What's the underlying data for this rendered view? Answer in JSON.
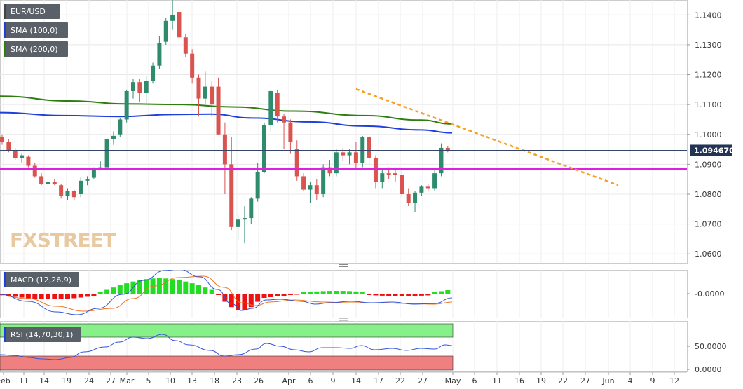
{
  "instrument": "EUR/USD",
  "legends": {
    "main": [
      "EUR/USD",
      "SMA (100,0)",
      "SMA (200,0)"
    ],
    "macd": "MACD (12,26,9)",
    "rsi": "RSI (14,70,30,1)"
  },
  "watermark": "FXSTREET",
  "colors": {
    "bull": "#2e8b6e",
    "bear": "#d9534f",
    "sma100": "#1f3fdc",
    "sma200": "#2e7d10",
    "support": "#e020e0",
    "trend": "#f5a020",
    "macd_line": "#3355dd",
    "signal_line": "#ee7722",
    "hist_pos": "#22dd22",
    "hist_neg": "#ee1111",
    "rsi_line": "#3355dd",
    "rsi_ob": "#88f088",
    "rsi_os": "#f08080"
  },
  "chart_data": {
    "type": "candlestick",
    "price_axis": {
      "min": 1.057,
      "max": 1.145,
      "ticks": [
        "1.1400",
        "1.1300",
        "1.1200",
        "1.1100",
        "1.1000",
        "1.0900",
        "1.0800",
        "1.0700",
        "1.0600"
      ]
    },
    "last_price": "1.094670",
    "support_level": 1.0885,
    "trendline": {
      "from": {
        "bar": 54,
        "value": 1.1152
      },
      "to": {
        "bar": 94,
        "value": 1.083
      }
    },
    "x_ticks": [
      "Feb",
      "11",
      "14",
      "19",
      "24",
      "27",
      "Mar",
      "5",
      "10",
      "13",
      "18",
      "23",
      "26",
      "Apr",
      "6",
      "9",
      "14",
      "17",
      "22",
      "27",
      "May",
      "6",
      "11",
      "16",
      "19",
      "22",
      "27",
      "Jun",
      "4",
      "9",
      "12"
    ],
    "macd_axis_label": "-0.0000",
    "rsi_axis_labels": [
      "50.0000",
      "0.0000"
    ],
    "rsi_overbought": 70,
    "rsi_oversold": 30,
    "candles": [
      [
        1.099,
        1.1,
        1.0965,
        1.0975
      ],
      [
        1.0975,
        1.0985,
        1.094,
        1.0945
      ],
      [
        1.0945,
        1.0955,
        1.0915,
        1.092
      ],
      [
        1.092,
        1.0935,
        1.0905,
        1.093
      ],
      [
        1.0925,
        1.093,
        1.089,
        1.0895
      ],
      [
        1.0895,
        1.0905,
        1.0855,
        1.086
      ],
      [
        1.086,
        1.087,
        1.083,
        1.0835
      ],
      [
        1.0835,
        1.085,
        1.0825,
        1.084
      ],
      [
        1.084,
        1.085,
        1.083,
        1.0835
      ],
      [
        1.083,
        1.0835,
        1.0785,
        1.0795
      ],
      [
        1.0795,
        1.082,
        1.078,
        1.081
      ],
      [
        1.081,
        1.0815,
        1.078,
        1.079
      ],
      [
        1.08,
        1.0855,
        1.079,
        1.0845
      ],
      [
        1.0845,
        1.086,
        1.083,
        1.085
      ],
      [
        1.0855,
        1.089,
        1.085,
        1.0885
      ],
      [
        1.0885,
        1.091,
        1.088,
        1.089
      ],
      [
        1.089,
        1.099,
        1.088,
        1.0985
      ],
      [
        1.0985,
        1.101,
        1.0965,
        1.0995
      ],
      [
        1.1,
        1.1055,
        1.099,
        1.105
      ],
      [
        1.105,
        1.115,
        1.104,
        1.1145
      ],
      [
        1.1145,
        1.1185,
        1.112,
        1.1175
      ],
      [
        1.1175,
        1.1185,
        1.111,
        1.114
      ],
      [
        1.114,
        1.1195,
        1.1105,
        1.118
      ],
      [
        1.118,
        1.124,
        1.117,
        1.123
      ],
      [
        1.123,
        1.133,
        1.122,
        1.1305
      ],
      [
        1.131,
        1.139,
        1.13,
        1.138
      ],
      [
        1.138,
        1.145,
        1.135,
        1.14
      ],
      [
        1.141,
        1.143,
        1.131,
        1.1325
      ],
      [
        1.1325,
        1.1335,
        1.126,
        1.127
      ],
      [
        1.127,
        1.1285,
        1.117,
        1.119
      ],
      [
        1.119,
        1.12,
        1.106,
        1.112
      ],
      [
        1.112,
        1.121,
        1.11,
        1.116
      ],
      [
        1.116,
        1.118,
        1.106,
        1.11
      ],
      [
        1.116,
        1.119,
        1.1,
        1.1
      ],
      [
        1.1,
        1.104,
        1.08,
        1.09
      ],
      [
        1.09,
        1.099,
        1.068,
        1.069
      ],
      [
        1.069,
        1.073,
        1.0645,
        1.0715
      ],
      [
        1.0715,
        1.076,
        1.0635,
        1.072
      ],
      [
        1.072,
        1.079,
        1.07,
        1.0785
      ],
      [
        1.0785,
        1.0905,
        1.0775,
        1.0875
      ],
      [
        1.0875,
        1.104,
        1.087,
        1.103
      ],
      [
        1.103,
        1.115,
        1.101,
        1.1145
      ],
      [
        1.114,
        1.115,
        1.104,
        1.106
      ],
      [
        1.106,
        1.107,
        1.095,
        1.104
      ],
      [
        1.104,
        1.105,
        1.0935,
        1.0975
      ],
      [
        1.095,
        1.098,
        1.0845,
        1.086
      ],
      [
        1.086,
        1.087,
        1.081,
        1.0815
      ],
      [
        1.0815,
        1.084,
        1.077,
        1.083
      ],
      [
        1.083,
        1.085,
        1.078,
        1.08
      ],
      [
        1.08,
        1.09,
        1.079,
        1.089
      ],
      [
        1.089,
        1.0915,
        1.086,
        1.087
      ],
      [
        1.087,
        1.095,
        1.086,
        1.094
      ],
      [
        1.094,
        1.0955,
        1.091,
        1.093
      ],
      [
        1.093,
        1.095,
        1.09,
        1.094
      ],
      [
        1.094,
        1.0975,
        1.0885,
        1.0905
      ],
      [
        1.0905,
        1.0995,
        1.089,
        1.099
      ],
      [
        1.099,
        1.0995,
        1.09,
        1.092
      ],
      [
        1.092,
        1.093,
        1.082,
        1.084
      ],
      [
        1.084,
        1.088,
        1.082,
        1.087
      ],
      [
        1.087,
        1.089,
        1.085,
        1.0865
      ],
      [
        1.087,
        1.089,
        1.084,
        1.0865
      ],
      [
        1.0865,
        1.088,
        1.079,
        1.08
      ],
      [
        1.08,
        1.082,
        1.076,
        1.077
      ],
      [
        1.077,
        1.081,
        1.074,
        1.0805
      ],
      [
        1.0805,
        1.083,
        1.0795,
        1.0825
      ],
      [
        1.0825,
        1.0835,
        1.081,
        1.082
      ],
      [
        1.082,
        1.088,
        1.081,
        1.087
      ],
      [
        1.087,
        1.097,
        1.086,
        1.0955
      ],
      [
        1.0955,
        1.0962,
        1.094,
        1.0947
      ]
    ]
  }
}
